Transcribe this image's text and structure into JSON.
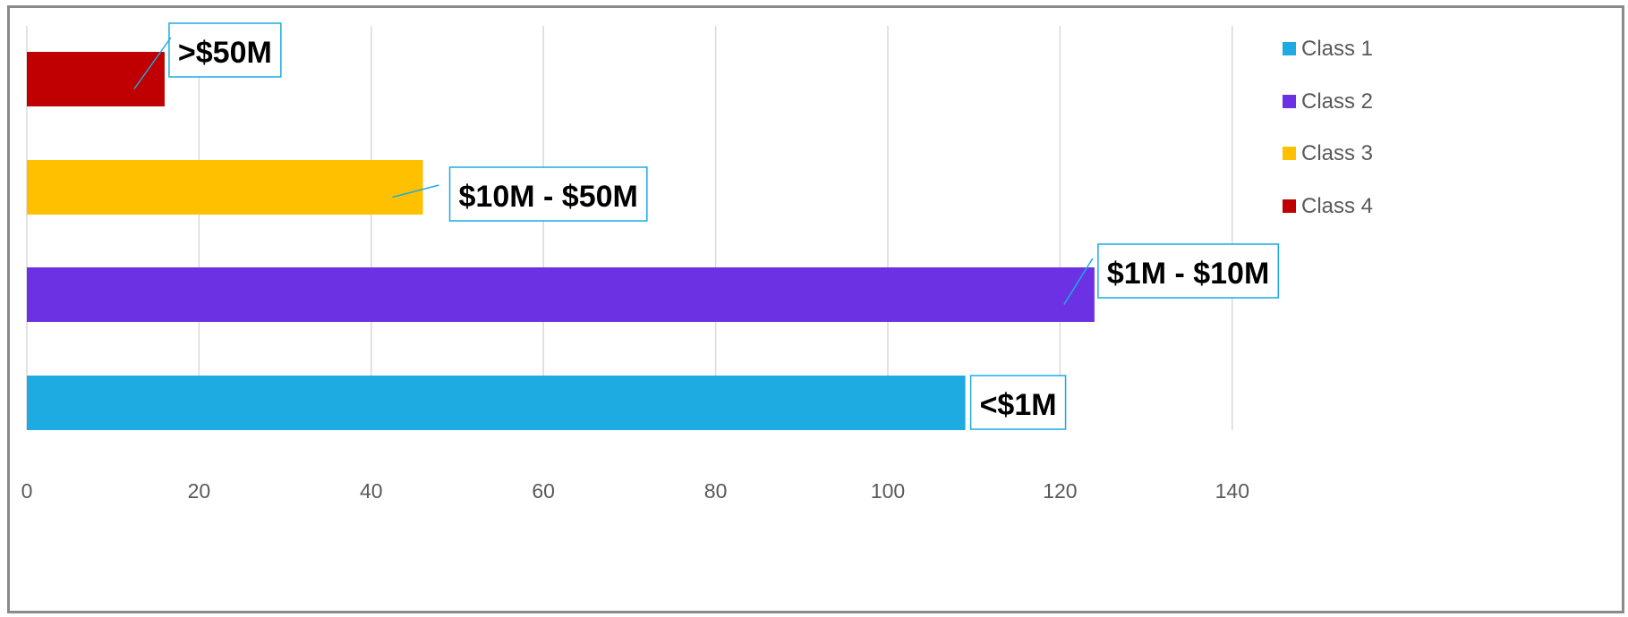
{
  "chart_data": {
    "type": "bar",
    "orientation": "horizontal",
    "title": "",
    "xlabel": "",
    "ylabel": "",
    "xlim": [
      0,
      150
    ],
    "x_ticks": [
      0,
      20,
      40,
      60,
      80,
      100,
      120,
      140
    ],
    "grid": true,
    "legend_position": "right",
    "series": [
      {
        "name": "Class 1",
        "value": 109,
        "label": "<$1M",
        "color": "#1DABE2"
      },
      {
        "name": "Class 2",
        "value": 124,
        "label": "$1M - $10M",
        "color": "#6D31E4"
      },
      {
        "name": "Class 3",
        "value": 46,
        "label": "$10M - $50M",
        "color": "#FFC000"
      },
      {
        "name": "Class 4",
        "value": 16,
        "label": ">$50M",
        "color": "#C00000"
      }
    ],
    "gridline_color": "#d9d9d9",
    "label_border_color": "#1DABE2"
  }
}
